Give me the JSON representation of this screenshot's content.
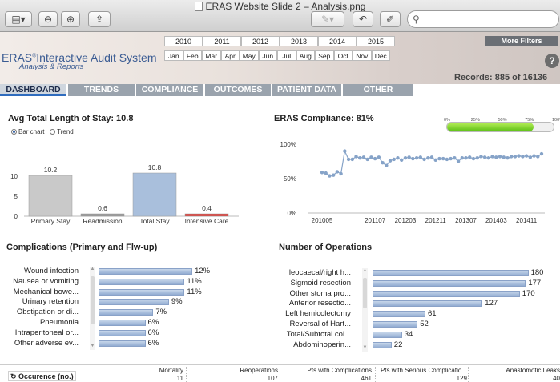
{
  "window": {
    "title": "ERAS Website Slide 2 – Analysis.png"
  },
  "toolbar": {
    "search_placeholder": "",
    "search_icon": "search-icon"
  },
  "filters": {
    "years": [
      "2010",
      "2011",
      "2012",
      "2013",
      "2014",
      "2015"
    ],
    "months": [
      "Jan",
      "Feb",
      "Mar",
      "Apr",
      "May",
      "Jun",
      "Jul",
      "Aug",
      "Sep",
      "Oct",
      "Nov",
      "Dec"
    ],
    "more_filters": "More Filters"
  },
  "header": {
    "app_title_brand": "ERAS",
    "app_title_rest": "Interactive Audit System",
    "app_subtitle": "Analysis & Reports",
    "help_label": "?",
    "records_label": "Records: 885 of 16136"
  },
  "nav": {
    "tabs": [
      "DASHBOARD",
      "TRENDS",
      "COMPLIANCE",
      "OUTCOMES",
      "PATIENT DATA",
      "OTHER"
    ],
    "active": "DASHBOARD"
  },
  "los": {
    "title": "Avg Total Length of Stay: 10.8",
    "toggle_bar": "Bar chart",
    "toggle_trend": "Trend",
    "toggle_selected": "Bar chart"
  },
  "compliance": {
    "title": "ERAS Compliance: 81%",
    "progress_percent": 81,
    "progress_ticks": [
      "0%",
      "25%",
      "50%",
      "75%",
      "100%"
    ]
  },
  "complications": {
    "title": "Complications (Primary and Flw-up)"
  },
  "operations": {
    "title": "Number of Operations"
  },
  "occurrence": {
    "label": "Occurence (no.)",
    "columns": [
      {
        "name": "Mortality",
        "value": "11"
      },
      {
        "name": "Reoperations",
        "value": "107"
      },
      {
        "name": "Pts with Complications",
        "value": "461"
      },
      {
        "name": "Pts with Serious Complicatio...",
        "value": "129"
      },
      {
        "name": "Anastomotic Leaks",
        "value": "40"
      }
    ]
  },
  "chart_data": [
    {
      "type": "bar",
      "title": "Avg Total Length of Stay: 10.8",
      "categories": [
        "Primary Stay",
        "Readmission",
        "Total Stay",
        "Intensive Care"
      ],
      "values": [
        10.2,
        0.6,
        10.8,
        0.4
      ],
      "data_labels": [
        "10.2",
        "0.6",
        "10.8",
        "0.4"
      ],
      "colors": [
        "#c9c9c9",
        "#9a9a9a",
        "#a9bfdc",
        "#e0403a"
      ],
      "yticks": [
        "0",
        "5",
        "10"
      ],
      "ylim": [
        0,
        12
      ],
      "xlabel": "",
      "ylabel": ""
    },
    {
      "type": "line",
      "title": "ERAS Compliance: 81%",
      "x": [
        "201005",
        "201006",
        "201007",
        "201008",
        "201009",
        "201010",
        "201011",
        "201012",
        "201101",
        "201102",
        "201103",
        "201104",
        "201105",
        "201106",
        "201107",
        "201108",
        "201109",
        "201110",
        "201111",
        "201112",
        "201201",
        "201202",
        "201203",
        "201204",
        "201205",
        "201206",
        "201207",
        "201208",
        "201209",
        "201210",
        "201211",
        "201212",
        "201301",
        "201302",
        "201303",
        "201304",
        "201305",
        "201306",
        "201307",
        "201308",
        "201309",
        "201310",
        "201311",
        "201312",
        "201401",
        "201402",
        "201403",
        "201404",
        "201405",
        "201406",
        "201407",
        "201408",
        "201409",
        "201410",
        "201411",
        "201412",
        "201501",
        "201502",
        "201503"
      ],
      "values": [
        59,
        58,
        54,
        55,
        60,
        57,
        90,
        78,
        78,
        82,
        80,
        81,
        78,
        81,
        79,
        81,
        73,
        69,
        76,
        78,
        80,
        77,
        80,
        81,
        79,
        80,
        81,
        78,
        80,
        81,
        77,
        79,
        79,
        78,
        79,
        80,
        75,
        80,
        80,
        81,
        79,
        80,
        82,
        81,
        80,
        82,
        81,
        82,
        81,
        80,
        82,
        82,
        83,
        82,
        83,
        81,
        83,
        82,
        86
      ],
      "xticks": [
        "201005",
        "201107",
        "201203",
        "201211",
        "201307",
        "201403",
        "201411"
      ],
      "yticks": [
        "0%",
        "50%",
        "100%"
      ],
      "ylim": [
        0,
        100
      ],
      "xlabel": "",
      "ylabel": ""
    },
    {
      "type": "bar",
      "orientation": "horizontal",
      "title": "Complications (Primary and Flw-up)",
      "categories": [
        "Wound infection",
        "Nausea or vomiting",
        "Mechanical bowe...",
        "Urinary retention",
        "Obstipation or di...",
        "Pneumonia",
        "Intraperitoneal or...",
        "Other adverse ev..."
      ],
      "values": [
        12,
        11,
        11,
        9,
        7,
        6,
        6,
        6
      ],
      "data_labels": [
        "12%",
        "11%",
        "11%",
        "9%",
        "7%",
        "6%",
        "6%",
        "6%"
      ],
      "xlim": [
        0,
        12.5
      ]
    },
    {
      "type": "bar",
      "orientation": "horizontal",
      "title": "Number of Operations",
      "categories": [
        "Ileocaecal/right h...",
        "Sigmoid resection",
        "Other stoma pro...",
        "Anterior resectio...",
        "Left hemicolectomy",
        "Reversal of Hart...",
        "Total/Subtotal col...",
        "Abdominoperin..."
      ],
      "values": [
        180,
        177,
        170,
        127,
        61,
        52,
        34,
        22
      ],
      "data_labels": [
        "180",
        "177",
        "170",
        "127",
        "61",
        "52",
        "34",
        "22"
      ],
      "xlim": [
        0,
        185
      ]
    }
  ]
}
